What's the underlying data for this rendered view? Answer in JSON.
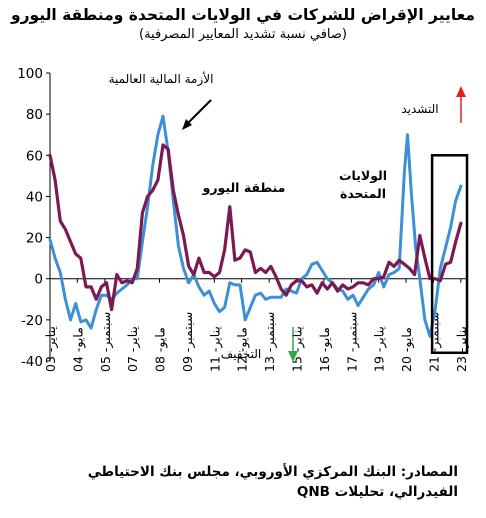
{
  "chart_data": {
    "type": "line",
    "title": "معايير الإقراض للشركات في الولايات المتحدة ومنطقة اليورو",
    "subtitle": "(صافي نسبة تشديد المعايير المصرفية)",
    "ylim": [
      -40,
      100
    ],
    "yticks": [
      -40,
      -20,
      0,
      20,
      40,
      60,
      80,
      100
    ],
    "x_axis": {
      "start": 2003.0,
      "end": 2023.25,
      "tick_labels": [
        {
          "x": 2003.0,
          "label": "يناير- 03"
        },
        {
          "x": 2004.33,
          "label": "مايو- 04"
        },
        {
          "x": 2005.67,
          "label": "سبتمبر- 05"
        },
        {
          "x": 2007.0,
          "label": "يناير- 07"
        },
        {
          "x": 2008.33,
          "label": "مايو- 08"
        },
        {
          "x": 2009.67,
          "label": "سبتمبر- 09"
        },
        {
          "x": 2011.0,
          "label": "يناير- 11"
        },
        {
          "x": 2012.33,
          "label": "مايو- 12"
        },
        {
          "x": 2013.67,
          "label": "سبتمبر- 13"
        },
        {
          "x": 2015.0,
          "label": "يناير- 15"
        },
        {
          "x": 2016.33,
          "label": "مايو- 16"
        },
        {
          "x": 2017.67,
          "label": "سبتمبر- 17"
        },
        {
          "x": 2019.0,
          "label": "يناير- 19"
        },
        {
          "x": 2020.33,
          "label": "مايو- 20"
        },
        {
          "x": 2021.67,
          "label": "سبتمبر- 21"
        },
        {
          "x": 2023.0,
          "label": "يناير- 23"
        }
      ]
    },
    "series": [
      {
        "name": "الولايات المتحدة",
        "color": "#3d8fd6",
        "points": [
          [
            2003.0,
            19
          ],
          [
            2003.25,
            10
          ],
          [
            2003.5,
            3
          ],
          [
            2003.75,
            -10
          ],
          [
            2004.0,
            -20
          ],
          [
            2004.25,
            -12
          ],
          [
            2004.5,
            -21
          ],
          [
            2004.75,
            -20
          ],
          [
            2005.0,
            -24
          ],
          [
            2005.25,
            -15
          ],
          [
            2005.5,
            -8
          ],
          [
            2005.75,
            -8
          ],
          [
            2006.0,
            -10
          ],
          [
            2006.25,
            -7
          ],
          [
            2006.5,
            -5
          ],
          [
            2006.75,
            -3
          ],
          [
            2007.0,
            0
          ],
          [
            2007.25,
            0
          ],
          [
            2007.5,
            18
          ],
          [
            2007.75,
            35
          ],
          [
            2008.0,
            55
          ],
          [
            2008.25,
            70
          ],
          [
            2008.5,
            79
          ],
          [
            2008.75,
            62
          ],
          [
            2009.0,
            38
          ],
          [
            2009.25,
            16
          ],
          [
            2009.5,
            5
          ],
          [
            2009.75,
            -2
          ],
          [
            2010.0,
            2
          ],
          [
            2010.25,
            -4
          ],
          [
            2010.5,
            -8
          ],
          [
            2010.75,
            -6
          ],
          [
            2011.0,
            -12
          ],
          [
            2011.25,
            -16
          ],
          [
            2011.5,
            -14
          ],
          [
            2011.75,
            -2
          ],
          [
            2012.0,
            -3
          ],
          [
            2012.25,
            -3
          ],
          [
            2012.5,
            -20
          ],
          [
            2012.75,
            -14
          ],
          [
            2013.0,
            -8
          ],
          [
            2013.25,
            -7
          ],
          [
            2013.5,
            -10
          ],
          [
            2013.75,
            -9
          ],
          [
            2014.0,
            -9
          ],
          [
            2014.25,
            -9
          ],
          [
            2014.5,
            -5
          ],
          [
            2014.75,
            -6
          ],
          [
            2015.0,
            -7
          ],
          [
            2015.25,
            0
          ],
          [
            2015.5,
            2
          ],
          [
            2015.75,
            7
          ],
          [
            2016.0,
            8
          ],
          [
            2016.25,
            4
          ],
          [
            2016.5,
            0
          ],
          [
            2016.75,
            -2
          ],
          [
            2017.0,
            -5
          ],
          [
            2017.25,
            -6
          ],
          [
            2017.5,
            -10
          ],
          [
            2017.75,
            -8
          ],
          [
            2018.0,
            -13
          ],
          [
            2018.25,
            -9
          ],
          [
            2018.5,
            -5
          ],
          [
            2018.75,
            -3
          ],
          [
            2019.0,
            3
          ],
          [
            2019.25,
            -4
          ],
          [
            2019.5,
            2
          ],
          [
            2019.75,
            3
          ],
          [
            2020.0,
            5
          ],
          [
            2020.25,
            52
          ],
          [
            2020.4,
            70
          ],
          [
            2020.6,
            40
          ],
          [
            2020.8,
            15
          ],
          [
            2021.0,
            0
          ],
          [
            2021.25,
            -20
          ],
          [
            2021.5,
            -28
          ],
          [
            2021.75,
            -15
          ],
          [
            2022.0,
            5
          ],
          [
            2022.25,
            15
          ],
          [
            2022.5,
            25
          ],
          [
            2022.75,
            38
          ],
          [
            2023.0,
            45
          ]
        ]
      },
      {
        "name": "منطقة اليورو",
        "color": "#7b1a50",
        "points": [
          [
            2003.0,
            60
          ],
          [
            2003.25,
            48
          ],
          [
            2003.5,
            28
          ],
          [
            2003.75,
            24
          ],
          [
            2004.0,
            18
          ],
          [
            2004.25,
            12
          ],
          [
            2004.5,
            10
          ],
          [
            2004.75,
            -4
          ],
          [
            2005.0,
            -4
          ],
          [
            2005.25,
            -10
          ],
          [
            2005.5,
            -4
          ],
          [
            2005.75,
            -2
          ],
          [
            2006.0,
            -15
          ],
          [
            2006.25,
            2
          ],
          [
            2006.5,
            -2
          ],
          [
            2006.75,
            -1
          ],
          [
            2007.0,
            -2
          ],
          [
            2007.25,
            5
          ],
          [
            2007.5,
            32
          ],
          [
            2007.75,
            40
          ],
          [
            2008.0,
            43
          ],
          [
            2008.25,
            48
          ],
          [
            2008.5,
            65
          ],
          [
            2008.75,
            63
          ],
          [
            2009.0,
            43
          ],
          [
            2009.25,
            31
          ],
          [
            2009.5,
            21
          ],
          [
            2009.75,
            6
          ],
          [
            2010.0,
            2
          ],
          [
            2010.25,
            10
          ],
          [
            2010.5,
            3
          ],
          [
            2010.75,
            3
          ],
          [
            2011.0,
            1
          ],
          [
            2011.25,
            3
          ],
          [
            2011.5,
            14
          ],
          [
            2011.75,
            35
          ],
          [
            2012.0,
            9
          ],
          [
            2012.25,
            10
          ],
          [
            2012.5,
            14
          ],
          [
            2012.75,
            13
          ],
          [
            2013.0,
            3
          ],
          [
            2013.25,
            5
          ],
          [
            2013.5,
            3
          ],
          [
            2013.75,
            6
          ],
          [
            2014.0,
            1
          ],
          [
            2014.25,
            -5
          ],
          [
            2014.5,
            -8
          ],
          [
            2014.75,
            -3
          ],
          [
            2015.0,
            -1
          ],
          [
            2015.25,
            -1
          ],
          [
            2015.5,
            -4
          ],
          [
            2015.75,
            -3
          ],
          [
            2016.0,
            -7
          ],
          [
            2016.25,
            -2
          ],
          [
            2016.5,
            -5
          ],
          [
            2016.75,
            -2
          ],
          [
            2017.0,
            -6
          ],
          [
            2017.25,
            -3
          ],
          [
            2017.5,
            -5
          ],
          [
            2017.75,
            -4
          ],
          [
            2018.0,
            -2
          ],
          [
            2018.25,
            -2
          ],
          [
            2018.5,
            -3
          ],
          [
            2018.75,
            0
          ],
          [
            2019.0,
            0
          ],
          [
            2019.25,
            1
          ],
          [
            2019.5,
            8
          ],
          [
            2019.75,
            6
          ],
          [
            2020.0,
            9
          ],
          [
            2020.25,
            7
          ],
          [
            2020.5,
            5
          ],
          [
            2020.75,
            2
          ],
          [
            2021.0,
            21
          ],
          [
            2021.25,
            10
          ],
          [
            2021.5,
            0
          ],
          [
            2021.75,
            0
          ],
          [
            2022.0,
            -1
          ],
          [
            2022.25,
            7
          ],
          [
            2022.5,
            8
          ],
          [
            2022.75,
            18
          ],
          [
            2023.0,
            27
          ]
        ]
      }
    ],
    "annotations": {
      "crisis": "الأزمة المالية العالمية",
      "euro_label": "منطقة اليورو",
      "us_label": "الولايات المتحدة",
      "tightening": "التشديد",
      "easing": "التخفيف"
    },
    "highlight_box": {
      "x_from": 2021.6,
      "x_to": 2023.3,
      "y_from": -36,
      "y_to": 60
    }
  },
  "source": "المصادر: البنك المركزي الأوروبي، مجلس بنك الاحتياطي الفيدرالي، تحليلات QNB"
}
